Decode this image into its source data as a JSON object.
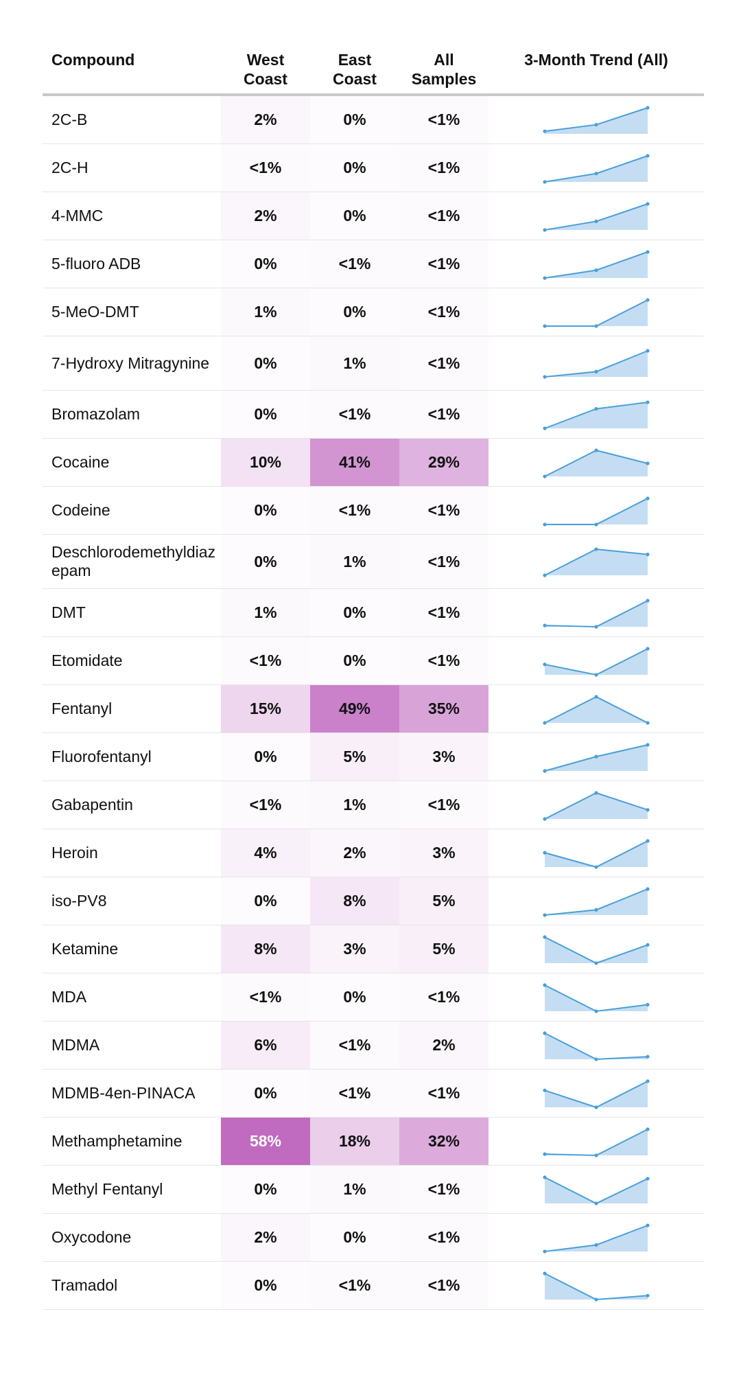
{
  "table": {
    "headers": {
      "compound": "Compound",
      "west": [
        "West",
        "Coast"
      ],
      "east": [
        "East",
        "Coast"
      ],
      "all": [
        "All",
        "Samples"
      ],
      "trend": "3-Month Trend (All)"
    }
  },
  "chart_data": {
    "type": "table",
    "columns": [
      "Compound",
      "West Coast",
      "East Coast",
      "All Samples",
      "3-Month Trend (All)"
    ],
    "heat_color": "#c06ac0",
    "spark_color": "#4a9fd8",
    "spark_fill": "#c5ddf3",
    "rows": [
      {
        "compound": "2C-B",
        "west": "2%",
        "east": "0%",
        "all": "<1%",
        "w": 2,
        "e": 0,
        "a": 0.5,
        "trend": [
          0.1,
          0.35,
          1.0
        ]
      },
      {
        "compound": "2C-H",
        "west": "<1%",
        "east": "0%",
        "all": "<1%",
        "w": 0.5,
        "e": 0,
        "a": 0.5,
        "trend": [
          0.0,
          0.32,
          1.0
        ]
      },
      {
        "compound": "4-MMC",
        "west": "2%",
        "east": "0%",
        "all": "<1%",
        "w": 2,
        "e": 0,
        "a": 0.5,
        "trend": [
          0.0,
          0.33,
          1.0
        ]
      },
      {
        "compound": "5-fluoro ADB",
        "west": "0%",
        "east": "<1%",
        "all": "<1%",
        "w": 0,
        "e": 0.5,
        "a": 0.5,
        "trend": [
          0.0,
          0.3,
          1.0
        ]
      },
      {
        "compound": "5-MeO-DMT",
        "west": "1%",
        "east": "0%",
        "all": "<1%",
        "w": 1,
        "e": 0,
        "a": 0.5,
        "trend": [
          0.0,
          0.0,
          1.0
        ]
      },
      {
        "compound": "7-Hydroxy Mitragynine",
        "west": "0%",
        "east": "1%",
        "all": "<1%",
        "w": 0,
        "e": 1,
        "a": 0.5,
        "trend": [
          0.0,
          0.2,
          1.0
        ]
      },
      {
        "compound": "Bromazolam",
        "west": "0%",
        "east": "<1%",
        "all": "<1%",
        "w": 0,
        "e": 0.5,
        "a": 0.5,
        "trend": [
          0.0,
          0.75,
          1.0
        ]
      },
      {
        "compound": "Cocaine",
        "west": "10%",
        "east": "41%",
        "all": "29%",
        "w": 10,
        "e": 41,
        "a": 29,
        "trend": [
          0.0,
          1.0,
          0.5
        ]
      },
      {
        "compound": "Codeine",
        "west": "0%",
        "east": "<1%",
        "all": "<1%",
        "w": 0,
        "e": 0.5,
        "a": 0.5,
        "trend": [
          0.0,
          0.0,
          1.0
        ]
      },
      {
        "compound": "Deschlorodemethyldiazepam",
        "west": "0%",
        "east": "1%",
        "all": "<1%",
        "w": 0,
        "e": 1,
        "a": 0.5,
        "trend": [
          0.0,
          1.0,
          0.8
        ]
      },
      {
        "compound": "DMT",
        "west": "1%",
        "east": "0%",
        "all": "<1%",
        "w": 1,
        "e": 0,
        "a": 0.5,
        "trend": [
          0.05,
          0.0,
          1.0
        ]
      },
      {
        "compound": "Etomidate",
        "west": "<1%",
        "east": "0%",
        "all": "<1%",
        "w": 0.5,
        "e": 0,
        "a": 0.5,
        "trend": [
          0.4,
          0.0,
          1.0
        ]
      },
      {
        "compound": "Fentanyl",
        "west": "15%",
        "east": "49%",
        "all": "35%",
        "w": 15,
        "e": 49,
        "a": 35,
        "trend": [
          0.0,
          1.0,
          0.0
        ]
      },
      {
        "compound": "Fluorofentanyl",
        "west": "0%",
        "east": "5%",
        "all": "3%",
        "w": 0,
        "e": 5,
        "a": 3,
        "trend": [
          0.0,
          0.55,
          1.0
        ]
      },
      {
        "compound": "Gabapentin",
        "west": "<1%",
        "east": "1%",
        "all": "<1%",
        "w": 0.5,
        "e": 1,
        "a": 0.5,
        "trend": [
          0.0,
          1.0,
          0.35
        ]
      },
      {
        "compound": "Heroin",
        "west": "4%",
        "east": "2%",
        "all": "3%",
        "w": 4,
        "e": 2,
        "a": 3,
        "trend": [
          0.55,
          0.0,
          1.0
        ]
      },
      {
        "compound": "iso-PV8",
        "west": "0%",
        "east": "8%",
        "all": "5%",
        "w": 0,
        "e": 8,
        "a": 5,
        "trend": [
          0.0,
          0.2,
          1.0
        ]
      },
      {
        "compound": "Ketamine",
        "west": "8%",
        "east": "3%",
        "all": "5%",
        "w": 8,
        "e": 3,
        "a": 5,
        "trend": [
          1.0,
          0.0,
          0.7
        ]
      },
      {
        "compound": "MDA",
        "west": "<1%",
        "east": "0%",
        "all": "<1%",
        "w": 0.5,
        "e": 0,
        "a": 0.5,
        "trend": [
          1.0,
          0.0,
          0.25
        ]
      },
      {
        "compound": "MDMA",
        "west": "6%",
        "east": "<1%",
        "all": "2%",
        "w": 6,
        "e": 0.5,
        "a": 2,
        "trend": [
          1.0,
          0.0,
          0.1
        ]
      },
      {
        "compound": "MDMB-4en-PINACA",
        "west": "0%",
        "east": "<1%",
        "all": "<1%",
        "w": 0,
        "e": 0.5,
        "a": 0.5,
        "trend": [
          0.65,
          0.0,
          1.0
        ]
      },
      {
        "compound": "Methamphetamine",
        "west": "58%",
        "east": "18%",
        "all": "32%",
        "w": 58,
        "e": 18,
        "a": 32,
        "trend": [
          0.05,
          0.0,
          1.0
        ]
      },
      {
        "compound": "Methyl Fentanyl",
        "west": "0%",
        "east": "1%",
        "all": "<1%",
        "w": 0,
        "e": 1,
        "a": 0.5,
        "trend": [
          1.0,
          0.0,
          0.95
        ]
      },
      {
        "compound": "Oxycodone",
        "west": "2%",
        "east": "0%",
        "all": "<1%",
        "w": 2,
        "e": 0,
        "a": 0.5,
        "trend": [
          0.0,
          0.25,
          1.0
        ]
      },
      {
        "compound": "Tramadol",
        "west": "0%",
        "east": "<1%",
        "all": "<1%",
        "w": 0,
        "e": 0.5,
        "a": 0.5,
        "trend": [
          1.0,
          0.0,
          0.15
        ]
      }
    ]
  }
}
